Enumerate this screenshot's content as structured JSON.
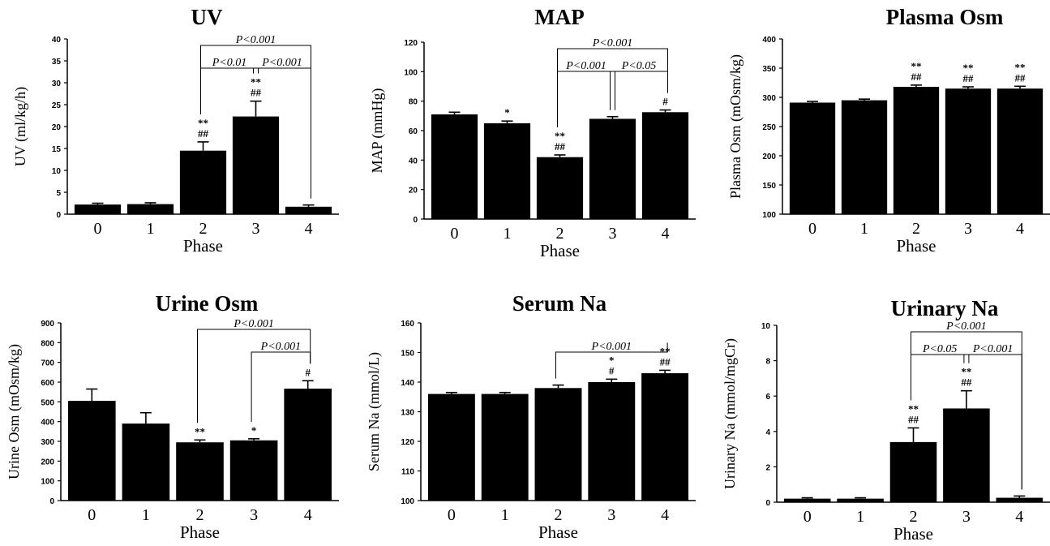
{
  "colors": {
    "bar": "#000000",
    "axis": "#000000",
    "background": "#ffffff"
  },
  "chart_data": [
    {
      "type": "bar",
      "title": "UV",
      "xlabel": "Phase",
      "ylabel": "UV (ml/kg/h)",
      "categories": [
        "0",
        "1",
        "2",
        "3",
        "4"
      ],
      "values": [
        2.2,
        2.3,
        14.5,
        22.3,
        1.7
      ],
      "errors": [
        0.3,
        0.3,
        2.0,
        3.5,
        0.4
      ],
      "ylim": [
        0,
        40
      ],
      "yticks": [
        "0",
        "5",
        "10",
        "15",
        "20",
        "25",
        "30",
        "35",
        "40"
      ],
      "annotations": [
        {
          "bar": 2,
          "lines": [
            "**",
            "##"
          ]
        },
        {
          "bar": 3,
          "lines": [
            "**",
            "##"
          ]
        }
      ],
      "brackets": [
        {
          "from": 2,
          "to": 4,
          "label": "P<0.001"
        },
        {
          "from": 2,
          "to": 3,
          "label": "P<0.01"
        },
        {
          "from": 3,
          "to": 4,
          "label": "P<0.001"
        }
      ]
    },
    {
      "type": "bar",
      "title": "MAP",
      "xlabel": "Phase",
      "ylabel": "MAP (mmHg)",
      "categories": [
        "0",
        "1",
        "2",
        "3",
        "4"
      ],
      "values": [
        71,
        65,
        42,
        68,
        72.5
      ],
      "errors": [
        1.5,
        1.5,
        1.5,
        1.5,
        1.5
      ],
      "ylim": [
        0,
        120
      ],
      "yticks": [
        "0",
        "20",
        "40",
        "60",
        "80",
        "100",
        "120"
      ],
      "annotations": [
        {
          "bar": 1,
          "lines": [
            "*"
          ]
        },
        {
          "bar": 2,
          "lines": [
            "**",
            "##"
          ]
        },
        {
          "bar": 4,
          "lines": [
            "#"
          ]
        }
      ],
      "brackets": [
        {
          "from": 2,
          "to": 4,
          "label": "P<0.001"
        },
        {
          "from": 2,
          "to": 3,
          "label": "P<0.001"
        },
        {
          "from": 3,
          "to": 4,
          "label": "P<0.05"
        }
      ]
    },
    {
      "type": "bar",
      "title": "Plasma Osm",
      "xlabel": "Phase",
      "ylabel": "Plasma Osm (mOsm/kg)",
      "categories": [
        "0",
        "1",
        "2",
        "3",
        "4"
      ],
      "values": [
        291,
        295,
        318,
        315,
        315
      ],
      "errors": [
        2,
        2,
        3,
        3,
        4
      ],
      "ylim": [
        100,
        400
      ],
      "yticks": [
        "100",
        "150",
        "200",
        "250",
        "300",
        "350",
        "400"
      ],
      "annotations": [
        {
          "bar": 2,
          "lines": [
            "**",
            "##"
          ]
        },
        {
          "bar": 3,
          "lines": [
            "**",
            "##"
          ]
        },
        {
          "bar": 4,
          "lines": [
            "**",
            "##"
          ]
        }
      ],
      "brackets": []
    },
    {
      "type": "bar",
      "title": "Urine Osm",
      "xlabel": "Phase",
      "ylabel": "Urine Osm (mOsm/kg)",
      "categories": [
        "0",
        "1",
        "2",
        "3",
        "4"
      ],
      "values": [
        505,
        390,
        295,
        305,
        567
      ],
      "errors": [
        60,
        55,
        12,
        8,
        40
      ],
      "ylim": [
        0,
        900
      ],
      "yticks": [
        "0",
        "100",
        "200",
        "300",
        "400",
        "500",
        "600",
        "700",
        "800",
        "900"
      ],
      "annotations": [
        {
          "bar": 2,
          "lines": [
            "**"
          ]
        },
        {
          "bar": 3,
          "lines": [
            "*"
          ]
        },
        {
          "bar": 4,
          "lines": [
            "#"
          ]
        }
      ],
      "brackets": [
        {
          "from": 2,
          "to": 4,
          "label": "P<0.001"
        },
        {
          "from": 3,
          "to": 4,
          "label": "P<0.001"
        }
      ]
    },
    {
      "type": "bar",
      "title": "Serum Na",
      "xlabel": "Phase",
      "ylabel": "Serum Na (mmol/L)",
      "categories": [
        "0",
        "1",
        "2",
        "3",
        "4"
      ],
      "values": [
        136,
        136,
        138,
        140,
        143
      ],
      "errors": [
        0.5,
        0.5,
        1,
        1,
        1
      ],
      "ylim": [
        100,
        160
      ],
      "yticks": [
        "100",
        "110",
        "120",
        "130",
        "140",
        "150",
        "160"
      ],
      "annotations": [
        {
          "bar": 3,
          "lines": [
            "*",
            "#"
          ]
        },
        {
          "bar": 4,
          "lines": [
            "**",
            "##"
          ]
        }
      ],
      "brackets": [
        {
          "from": 2,
          "to": 4,
          "label": "P<0.001"
        }
      ]
    },
    {
      "type": "bar",
      "title": "Urinary Na",
      "xlabel": "Phase",
      "ylabel": "Urinary Na (mmol/mgCr)",
      "categories": [
        "0",
        "1",
        "2",
        "3",
        "4"
      ],
      "values": [
        0.2,
        0.2,
        3.4,
        5.3,
        0.25
      ],
      "errors": [
        0.05,
        0.05,
        0.8,
        1.0,
        0.1
      ],
      "ylim": [
        0,
        10
      ],
      "yticks": [
        "0",
        "2",
        "4",
        "6",
        "8",
        "10"
      ],
      "annotations": [
        {
          "bar": 2,
          "lines": [
            "**",
            "##"
          ]
        },
        {
          "bar": 3,
          "lines": [
            "**",
            "##"
          ]
        }
      ],
      "brackets": [
        {
          "from": 2,
          "to": 4,
          "label": "P<0.001"
        },
        {
          "from": 2,
          "to": 3,
          "label": "P<0.05"
        },
        {
          "from": 3,
          "to": 4,
          "label": "P<0.001"
        }
      ]
    }
  ]
}
